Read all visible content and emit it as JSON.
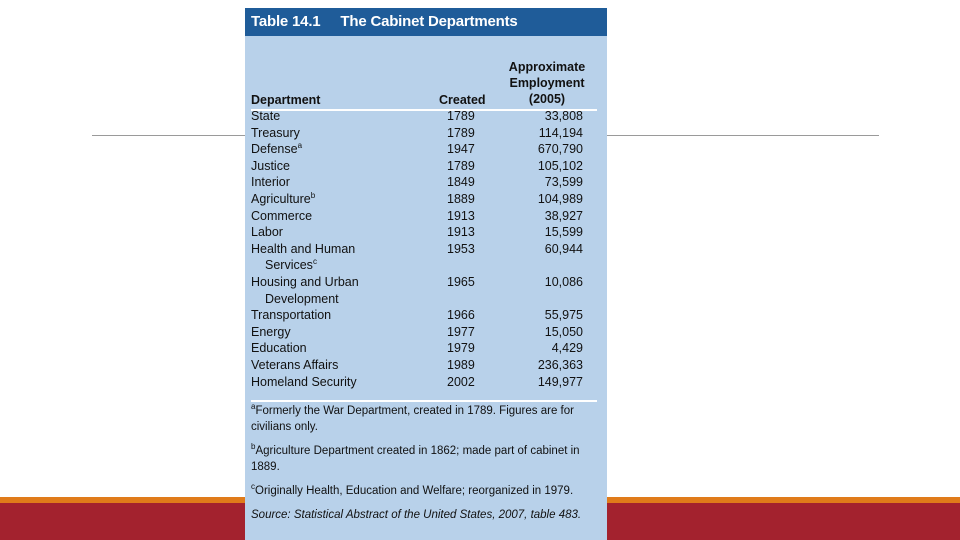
{
  "table": {
    "number": "Table 14.1",
    "title": "The Cabinet Departments",
    "columns": {
      "department": "Department",
      "created": "Created",
      "employment_line1": "Approximate",
      "employment_line2": "Employment",
      "employment_line3": "(2005)"
    },
    "rows": [
      {
        "department": "State",
        "sup": "",
        "department_cont": "",
        "created": "1789",
        "employment": "33,808"
      },
      {
        "department": "Treasury",
        "sup": "",
        "department_cont": "",
        "created": "1789",
        "employment": "114,194"
      },
      {
        "department": "Defense",
        "sup": "a",
        "department_cont": "",
        "created": "1947",
        "employment": "670,790"
      },
      {
        "department": "Justice",
        "sup": "",
        "department_cont": "",
        "created": "1789",
        "employment": "105,102"
      },
      {
        "department": "Interior",
        "sup": "",
        "department_cont": "",
        "created": "1849",
        "employment": "73,599"
      },
      {
        "department": "Agriculture",
        "sup": "b",
        "department_cont": "",
        "created": "1889",
        "employment": "104,989"
      },
      {
        "department": "Commerce",
        "sup": "",
        "department_cont": "",
        "created": "1913",
        "employment": "38,927"
      },
      {
        "department": "Labor",
        "sup": "",
        "department_cont": "",
        "created": "1913",
        "employment": "15,599"
      },
      {
        "department": "Health and Human",
        "sup": "",
        "department_cont": "Services",
        "cont_sup": "c",
        "created": "1953",
        "employment": "60,944"
      },
      {
        "department": "Housing and Urban",
        "sup": "",
        "department_cont": "Development",
        "cont_sup": "",
        "created": "1965",
        "employment": "10,086"
      },
      {
        "department": "Transportation",
        "sup": "",
        "department_cont": "",
        "created": "1966",
        "employment": "55,975"
      },
      {
        "department": "Energy",
        "sup": "",
        "department_cont": "",
        "created": "1977",
        "employment": "15,050"
      },
      {
        "department": "Education",
        "sup": "",
        "department_cont": "",
        "created": "1979",
        "employment": "4,429"
      },
      {
        "department": "Veterans Affairs",
        "sup": "",
        "department_cont": "",
        "created": "1989",
        "employment": "236,363"
      },
      {
        "department": "Homeland Security",
        "sup": "",
        "department_cont": "",
        "created": "2002",
        "employment": "149,977"
      }
    ],
    "footnotes": [
      {
        "mark": "a",
        "text": "Formerly the War Department, created in 1789. Figures are for civilians only."
      },
      {
        "mark": "b",
        "text": "Agriculture Department created in 1862; made part of cabinet in 1889."
      },
      {
        "mark": "c",
        "text": "Originally Health, Education and Welfare; reorganized in 1979."
      }
    ],
    "source_label": "Source:",
    "source_text": "Statistical Abstract of the United States, 2007, table 483."
  },
  "colors": {
    "header_bg": "#1f5c99",
    "card_bg": "#b8d1ea",
    "band_orange": "#e07b1a",
    "band_red": "#a3222e"
  }
}
